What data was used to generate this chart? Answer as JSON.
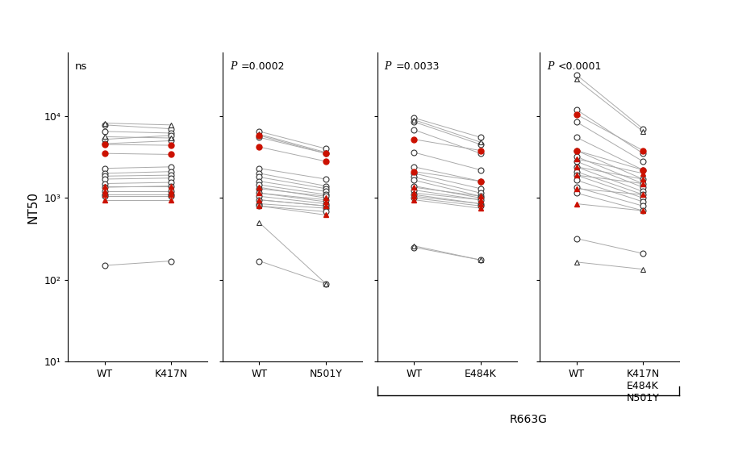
{
  "panels": [
    {
      "label_x": [
        "WT",
        "K417N"
      ],
      "pval": "ns",
      "pval_italic": false
    },
    {
      "label_x": [
        "WT",
        "N501Y"
      ],
      "pval": "P=0.0002",
      "pval_italic": true
    },
    {
      "label_x": [
        "WT",
        "E484K"
      ],
      "pval": "P=0.0033",
      "pval_italic": true
    },
    {
      "label_x": [
        "WT",
        "K417N\nE484K\nN501Y"
      ],
      "pval": "P<0.0001",
      "pval_italic": true
    }
  ],
  "ylabel": "NT50",
  "ylim": [
    10,
    60000
  ],
  "yticks": [
    10,
    100,
    1000,
    10000
  ],
  "yticklabels": [
    "10¹",
    "10²",
    "10³",
    "10⁴"
  ],
  "line_color": "#aaaaaa",
  "red_color": "#cc1100",
  "white_face": "#ffffff",
  "marker_size": 5,
  "line_width": 0.7,
  "r663g_label": "R663G"
}
